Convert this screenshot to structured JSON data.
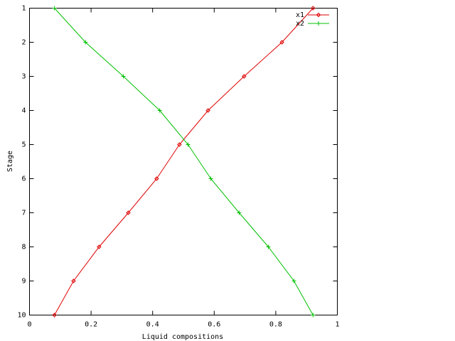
{
  "chart_data": {
    "type": "line",
    "xlabel": "Liquid compositions",
    "ylabel": "Stage",
    "xlim": [
      0,
      1
    ],
    "xticks": [
      0,
      0.2,
      0.4,
      0.6,
      0.8,
      1
    ],
    "ylim": [
      10,
      1
    ],
    "yticks": [
      1,
      2,
      3,
      4,
      5,
      6,
      7,
      8,
      9,
      10
    ],
    "grid": false,
    "legend": "top-right",
    "series": [
      {
        "name": "x1",
        "color": "#e00000",
        "marker": "diamond",
        "x": [
          0.921,
          0.82,
          0.697,
          0.58,
          0.487,
          0.413,
          0.321,
          0.226,
          0.143,
          0.081
        ],
        "values": [
          1,
          2,
          3,
          4,
          5,
          6,
          7,
          8,
          9,
          10
        ]
      },
      {
        "name": "x2",
        "color": "#00c000",
        "marker": "plus",
        "x": [
          0.081,
          0.182,
          0.305,
          0.423,
          0.515,
          0.589,
          0.681,
          0.776,
          0.859,
          0.921
        ],
        "values": [
          1,
          2,
          3,
          4,
          5,
          6,
          7,
          8,
          9,
          10
        ]
      }
    ]
  }
}
